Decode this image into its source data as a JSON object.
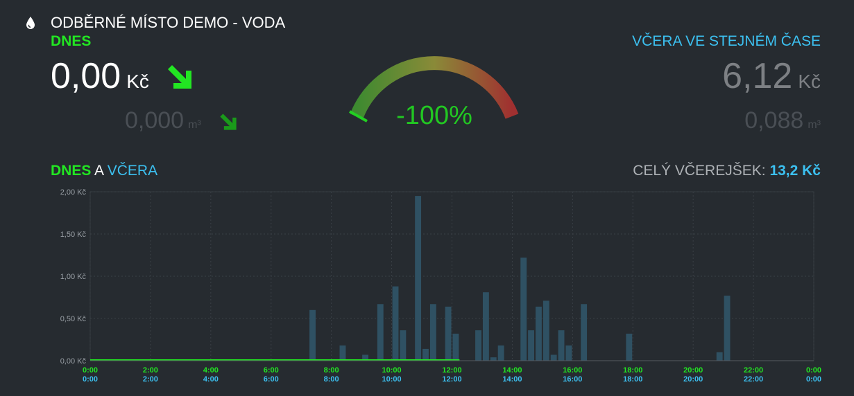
{
  "header": {
    "title": "ODBĚRNÉ MÍSTO DEMO - VODA",
    "icon": "water-drop-icon"
  },
  "today": {
    "label": "DNES",
    "price_value": "0,00",
    "price_unit": "Kč",
    "volume_value": "0,000",
    "volume_unit": "m³",
    "trend_icon": "arrow-down-right-icon"
  },
  "yesterday": {
    "label": "VČERA VE STEJNÉM ČASE",
    "price_value": "6,12",
    "price_unit": "Kč",
    "volume_value": "0,088",
    "volume_unit": "m³"
  },
  "gauge": {
    "value_text": "-100%",
    "value": -100,
    "range": [
      -100,
      100
    ]
  },
  "chart_section": {
    "heading_today": "DNES",
    "heading_and": "A",
    "heading_yesterday": "VČERA",
    "total_label": "CELÝ VČEREJŠEK:",
    "total_value": "13,2 Kč"
  },
  "colors": {
    "background": "#262b30",
    "today": "#22e622",
    "yesterday": "#3cc0f0",
    "bar": "#2f5163",
    "gauge_value": "#22c822"
  },
  "chart_data": {
    "type": "bar",
    "x_unit": "hour",
    "xlim": [
      0,
      24
    ],
    "ylim": [
      0,
      2
    ],
    "y_ticks": [
      "0,00 Kč",
      "0,50 Kč",
      "1,00 Kč",
      "1,50 Kč",
      "2,00 Kč"
    ],
    "y_tick_values": [
      0,
      0.5,
      1,
      1.5,
      2
    ],
    "x_ticks_today": [
      "0:00",
      "2:00",
      "4:00",
      "6:00",
      "8:00",
      "10:00",
      "12:00",
      "14:00",
      "16:00",
      "18:00",
      "20:00",
      "22:00",
      "0:00"
    ],
    "x_ticks_yesterday": [
      "0:00",
      "2:00",
      "4:00",
      "6:00",
      "8:00",
      "10:00",
      "12:00",
      "14:00",
      "16:00",
      "18:00",
      "20:00",
      "22:00",
      "0:00"
    ],
    "x_tick_values": [
      0,
      2,
      4,
      6,
      8,
      10,
      12,
      14,
      16,
      18,
      20,
      22,
      24
    ],
    "grid": true,
    "series": [
      {
        "name": "VČERA",
        "type": "bar",
        "x": [
          7.25,
          8.25,
          9.0,
          9.5,
          10.0,
          10.25,
          10.75,
          11.0,
          11.25,
          11.75,
          12.0,
          12.75,
          13.0,
          13.25,
          13.5,
          14.25,
          14.5,
          14.75,
          15.0,
          15.25,
          15.5,
          15.75,
          16.25,
          17.75,
          20.75,
          21.0
        ],
        "values": [
          0.6,
          0.18,
          0.07,
          0.67,
          0.88,
          0.36,
          1.95,
          0.14,
          0.67,
          0.64,
          0.32,
          0.36,
          0.81,
          0.04,
          0.18,
          1.22,
          0.36,
          0.64,
          0.71,
          0.07,
          0.36,
          0.18,
          0.67,
          0.32,
          0.1,
          0.77
        ]
      },
      {
        "name": "DNES",
        "type": "line",
        "x": [
          0,
          12.25
        ],
        "values": [
          0,
          0
        ]
      }
    ]
  }
}
